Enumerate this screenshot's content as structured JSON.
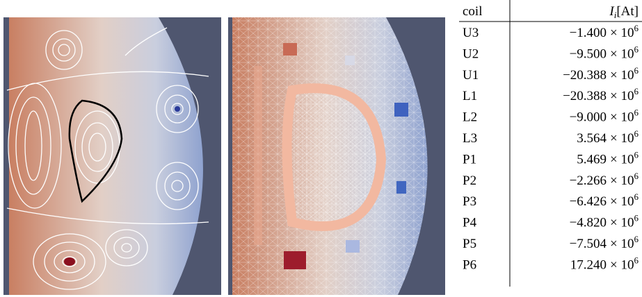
{
  "table": {
    "header": {
      "coil": "coil",
      "current": {
        "symbol": "I",
        "subscript": "i",
        "unit": "[At]"
      }
    },
    "rows": [
      {
        "coil": "U3",
        "coefficient": "−1.400",
        "base": "× 10",
        "exponent": "6"
      },
      {
        "coil": "U2",
        "coefficient": "−9.500",
        "base": "× 10",
        "exponent": "6"
      },
      {
        "coil": "U1",
        "coefficient": "−20.388",
        "base": "× 10",
        "exponent": "6"
      },
      {
        "coil": "L1",
        "coefficient": "−20.388",
        "base": "× 10",
        "exponent": "6"
      },
      {
        "coil": "L2",
        "coefficient": "−9.000",
        "base": "× 10",
        "exponent": "6"
      },
      {
        "coil": "L3",
        "coefficient": "3.564",
        "base": "× 10",
        "exponent": "6"
      },
      {
        "coil": "P1",
        "coefficient": "5.469",
        "base": "× 10",
        "exponent": "6"
      },
      {
        "coil": "P2",
        "coefficient": "−2.266",
        "base": "× 10",
        "exponent": "6"
      },
      {
        "coil": "P3",
        "coefficient": "−6.426",
        "base": "× 10",
        "exponent": "6"
      },
      {
        "coil": "P4",
        "coefficient": "−4.820",
        "base": "× 10",
        "exponent": "6"
      },
      {
        "coil": "P5",
        "coefficient": "−7.504",
        "base": "× 10",
        "exponent": "6"
      },
      {
        "coil": "P6",
        "coefficient": "17.240",
        "base": "× 10",
        "exponent": "6"
      }
    ]
  }
}
